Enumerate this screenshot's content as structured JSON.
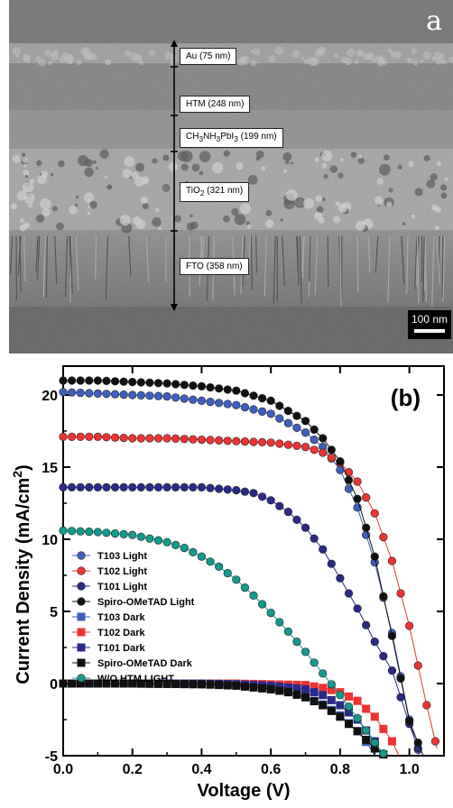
{
  "sem_image": {
    "panel_letter": "a",
    "layers": [
      {
        "name": "Au",
        "label_html": "Au (75 nm)"
      },
      {
        "name": "HTM",
        "label_html": "HTM (248 nm)"
      },
      {
        "name": "perovskite",
        "label_html": "CH<sub>3</sub>NH<sub>3</sub>PbI<sub>3</sub> (199 nm)"
      },
      {
        "name": "TiO2",
        "label_html": "TiO<sub>2</sub> (321 nm)"
      },
      {
        "name": "FTO",
        "label_html": "FTO (358 nm)"
      }
    ],
    "scale_bar": "100 nm"
  },
  "chart_data": {
    "type": "line",
    "panel_label": "(b)",
    "xlabel": "Voltage (V)",
    "ylabel_main": "Current Density (mA/cm",
    "ylabel_sup": "2",
    "ylabel_close": ")",
    "xlim": [
      0.0,
      1.1
    ],
    "ylim": [
      -5,
      22
    ],
    "x_ticks": [
      0.0,
      0.2,
      0.4,
      0.6,
      0.8,
      1.0
    ],
    "x_tick_labels": [
      "0.0",
      "0.2",
      "0.4",
      "0.6",
      "0.8",
      "1.0"
    ],
    "y_ticks": [
      -5,
      0,
      5,
      10,
      15,
      20
    ],
    "y_tick_labels": [
      "-5",
      "0",
      "5",
      "10",
      "15",
      "20"
    ],
    "legend_position": "left",
    "series": [
      {
        "name": "T103 Light",
        "color": "#3d5fbf",
        "marker": "circle",
        "x": [
          0.0,
          0.1,
          0.2,
          0.3,
          0.4,
          0.5,
          0.6,
          0.7,
          0.75,
          0.8,
          0.85,
          0.9,
          0.95,
          1.0,
          1.03
        ],
        "y": [
          20.2,
          20.1,
          20.0,
          19.9,
          19.6,
          19.3,
          18.7,
          17.4,
          16.4,
          14.8,
          12.2,
          8.4,
          3.5,
          -2.5,
          -5.0
        ]
      },
      {
        "name": "T102 Light",
        "color": "#ee3333",
        "marker": "circle",
        "x": [
          0.0,
          0.1,
          0.2,
          0.3,
          0.4,
          0.5,
          0.6,
          0.7,
          0.75,
          0.8,
          0.85,
          0.9,
          0.95,
          1.0,
          1.05,
          1.08
        ],
        "y": [
          17.1,
          17.1,
          17.0,
          17.0,
          16.9,
          16.8,
          16.7,
          16.4,
          16.0,
          15.3,
          14.0,
          11.8,
          8.5,
          4.0,
          -1.5,
          -4.5
        ]
      },
      {
        "name": "T101 Light",
        "color": "#2a2a88",
        "marker": "circle",
        "x": [
          0.0,
          0.1,
          0.2,
          0.3,
          0.4,
          0.5,
          0.55,
          0.6,
          0.65,
          0.7,
          0.75,
          0.8,
          0.85,
          0.9,
          0.95,
          1.0,
          1.03
        ],
        "y": [
          13.6,
          13.6,
          13.6,
          13.6,
          13.6,
          13.4,
          13.2,
          12.7,
          11.9,
          10.8,
          9.3,
          7.3,
          5.2,
          2.9,
          0.9,
          -2.8,
          -4.8
        ]
      },
      {
        "name": "Spiro-OMeTAD Light",
        "color": "#111111",
        "marker": "circle",
        "x": [
          0.0,
          0.1,
          0.2,
          0.3,
          0.4,
          0.5,
          0.6,
          0.7,
          0.75,
          0.8,
          0.85,
          0.9,
          0.95,
          1.0,
          1.04
        ],
        "y": [
          21.0,
          21.0,
          20.9,
          20.8,
          20.6,
          20.3,
          19.6,
          18.2,
          17.0,
          15.4,
          12.8,
          8.8,
          3.3,
          -2.6,
          -5.0
        ]
      },
      {
        "name": "T103 Dark",
        "color": "#3d5fbf",
        "marker": "square",
        "x": [
          0.0,
          0.2,
          0.4,
          0.5,
          0.55,
          0.6,
          0.65,
          0.7,
          0.75,
          0.8,
          0.85,
          0.88,
          0.9
        ],
        "y": [
          0.0,
          0.0,
          -0.05,
          -0.1,
          -0.2,
          -0.35,
          -0.6,
          -0.95,
          -1.45,
          -2.2,
          -3.3,
          -4.2,
          -5.0
        ]
      },
      {
        "name": "T102 Dark",
        "color": "#ee3333",
        "marker": "square",
        "x": [
          0.0,
          0.2,
          0.4,
          0.5,
          0.6,
          0.7,
          0.75,
          0.8,
          0.85,
          0.9,
          0.95,
          0.97
        ],
        "y": [
          0.0,
          0.0,
          0.0,
          0.0,
          -0.05,
          -0.1,
          -0.3,
          -0.6,
          -1.2,
          -2.3,
          -4.0,
          -5.0
        ]
      },
      {
        "name": "T101 Dark",
        "color": "#2a2a88",
        "marker": "square",
        "x": [
          0.0,
          0.2,
          0.4,
          0.5,
          0.6,
          0.7,
          0.75,
          0.8,
          0.85,
          0.9,
          0.92
        ],
        "y": [
          0.0,
          0.0,
          0.0,
          -0.05,
          -0.15,
          -0.4,
          -0.8,
          -1.5,
          -2.5,
          -4.0,
          -5.0
        ]
      },
      {
        "name": "Spiro-OMeTAD Dark",
        "color": "#111111",
        "marker": "square",
        "x": [
          0.0,
          0.2,
          0.4,
          0.5,
          0.6,
          0.65,
          0.7,
          0.75,
          0.8,
          0.85,
          0.9,
          0.93
        ],
        "y": [
          0.0,
          0.0,
          -0.05,
          -0.15,
          -0.4,
          -0.6,
          -0.95,
          -1.5,
          -2.3,
          -3.3,
          -4.5,
          -5.0
        ]
      },
      {
        "name": "W/O HTM LIGHT",
        "color": "#129a8c",
        "marker": "circle",
        "x": [
          0.0,
          0.1,
          0.2,
          0.3,
          0.35,
          0.4,
          0.45,
          0.5,
          0.55,
          0.6,
          0.65,
          0.7,
          0.75,
          0.8,
          0.85,
          0.9,
          0.93
        ],
        "y": [
          10.6,
          10.5,
          10.3,
          9.8,
          9.4,
          8.8,
          8.1,
          7.2,
          6.1,
          4.9,
          3.6,
          2.2,
          0.7,
          -0.8,
          -2.4,
          -4.1,
          -5.0
        ]
      }
    ]
  }
}
